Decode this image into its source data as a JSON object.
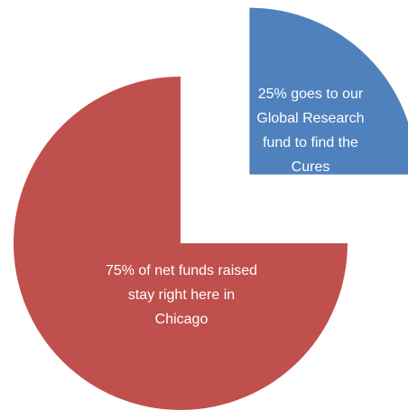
{
  "chart_data": {
    "type": "pie",
    "categories": [
      "25% goes to our Global Research fund to find the Cures",
      "75% of net funds raised stay right here in Chicago"
    ],
    "values": [
      25,
      75
    ],
    "colors": [
      "#4f81bd",
      "#c0504d"
    ]
  }
}
